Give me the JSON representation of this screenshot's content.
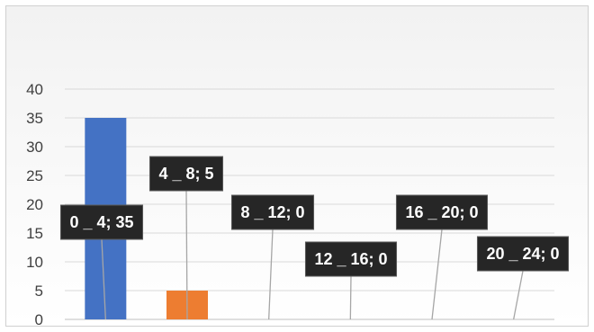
{
  "chart_data": {
    "type": "bar",
    "title": "",
    "xlabel": "",
    "ylabel": "",
    "ylim": [
      0,
      40
    ],
    "yticks": [
      0,
      5,
      10,
      15,
      20,
      25,
      30,
      35,
      40
    ],
    "grid": true,
    "legend": "none",
    "categories": [
      "0 _ 4",
      "4 _ 8",
      "8 _ 12",
      "12 _ 16",
      "16 _ 20",
      "20 _ 24"
    ],
    "values": [
      35,
      5,
      0,
      0,
      0,
      0
    ],
    "colors": [
      "#4472c4",
      "#ed7d31",
      "#a5a5a5",
      "#ffc000",
      "#5b9bd5",
      "#70ad47"
    ],
    "data_labels": [
      "0 _ 4; 35",
      "4 _ 8; 5",
      "8 _ 12; 0",
      "12 _ 16; 0",
      "16 _ 20; 0",
      "20 _ 24; 0"
    ],
    "label_style": {
      "background": "#262626",
      "text_color": "#ffffff",
      "leader_line_color": "#a6a6a6"
    }
  }
}
